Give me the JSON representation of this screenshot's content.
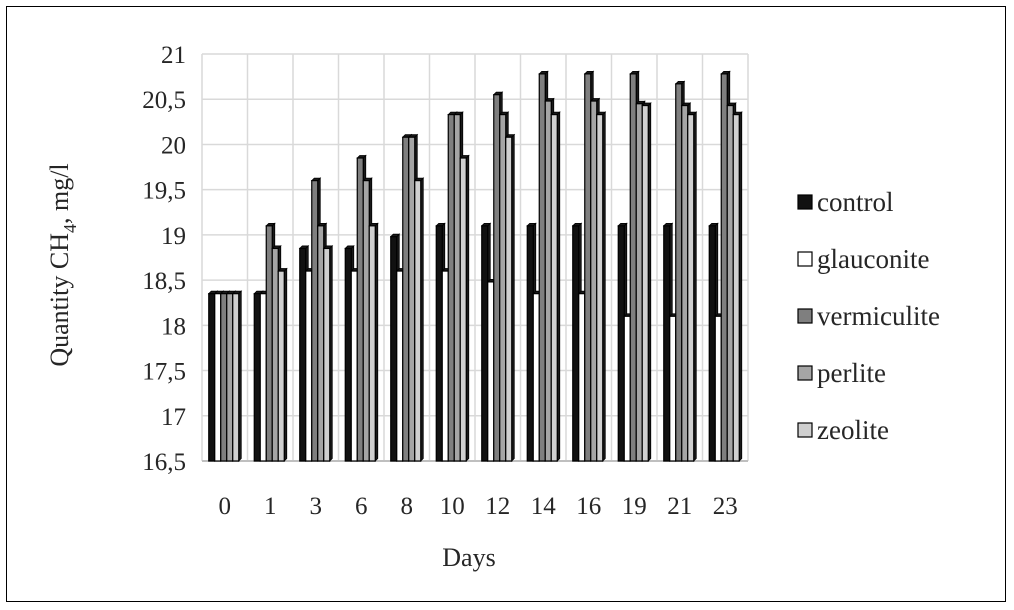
{
  "chart_data": {
    "type": "bar",
    "title": "",
    "xlabel": "Days",
    "ylabel": "Quantity CH",
    "ylabel_subscript": "4",
    "ylabel_suffix": ", mg/l",
    "ylim": [
      16.5,
      21
    ],
    "yticks": [
      "16,5",
      "17",
      "17,5",
      "18",
      "18,5",
      "19",
      "19,5",
      "20",
      "20,5",
      "21"
    ],
    "ytick_values": [
      16.5,
      17,
      17.5,
      18,
      18.5,
      19,
      19.5,
      20,
      20.5,
      21
    ],
    "categories": [
      "0",
      "1",
      "3",
      "6",
      "8",
      "10",
      "12",
      "14",
      "16",
      "19",
      "21",
      "23"
    ],
    "grid": true,
    "legend_position": "right",
    "series": [
      {
        "name": "control",
        "color": "#111111",
        "values": [
          18.35,
          18.35,
          18.85,
          18.85,
          18.98,
          19.1,
          19.1,
          19.1,
          19.1,
          19.1,
          19.1,
          19.1
        ]
      },
      {
        "name": "glauconite",
        "color": "#ffffff",
        "values": [
          18.35,
          18.35,
          18.6,
          18.6,
          18.6,
          18.6,
          18.48,
          18.35,
          18.35,
          18.1,
          18.1,
          18.1
        ]
      },
      {
        "name": "vermiculite",
        "color": "#7f7f7f",
        "values": [
          18.35,
          19.1,
          19.6,
          19.85,
          20.08,
          20.33,
          20.55,
          20.78,
          20.78,
          20.78,
          20.67,
          20.78
        ]
      },
      {
        "name": "perlite",
        "color": "#a5a5a5",
        "values": [
          18.35,
          18.85,
          19.1,
          19.6,
          20.08,
          20.33,
          20.33,
          20.48,
          20.48,
          20.45,
          20.43,
          20.43
        ]
      },
      {
        "name": "zeolite",
        "color": "#d0d0d0",
        "values": [
          18.35,
          18.6,
          18.85,
          19.1,
          19.6,
          19.85,
          20.08,
          20.33,
          20.33,
          20.43,
          20.33,
          20.33
        ]
      }
    ]
  }
}
